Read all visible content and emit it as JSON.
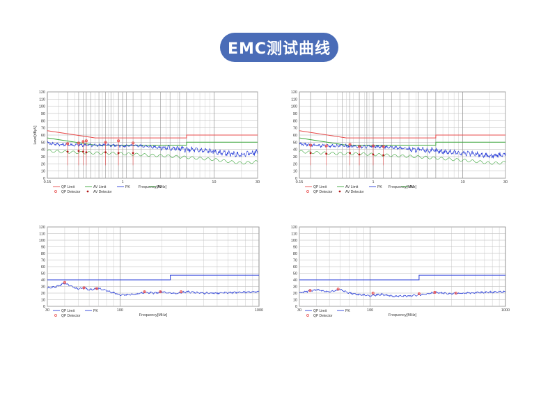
{
  "page_title": "EMC测试曲线",
  "colors": {
    "pill": "#4a6cb7",
    "qp_limit": "#e84a4a",
    "av_limit": "#3aa63a",
    "pk": "#2a3fd8",
    "av": "#3aa63a",
    "grid": "#9a9a9a"
  },
  "chart_data": [
    {
      "type": "line",
      "xlabel": "Frequency[MHz]",
      "ylabel": "Level[dBµV]",
      "x_scale": "log",
      "xlim": [
        0.15,
        30
      ],
      "ylim": [
        0,
        120
      ],
      "x_ticks": [
        {
          "v": 0.15,
          "label": "0.15"
        },
        {
          "v": 1,
          "label": "1"
        },
        {
          "v": 10,
          "label": "10"
        },
        {
          "v": 30,
          "label": "30"
        }
      ],
      "y_ticks": [
        0,
        10,
        20,
        30,
        40,
        50,
        60,
        70,
        80,
        90,
        100,
        110,
        120
      ],
      "series": [
        {
          "name": "QP Limit",
          "style": "step",
          "points": [
            [
              0.15,
              66
            ],
            [
              0.5,
              56
            ],
            [
              5,
              56
            ],
            [
              5,
              60
            ],
            [
              30,
              60
            ]
          ]
        },
        {
          "name": "AV Limit",
          "style": "step",
          "points": [
            [
              0.15,
              56
            ],
            [
              0.5,
              46
            ],
            [
              5,
              46
            ],
            [
              5,
              50
            ],
            [
              30,
              50
            ]
          ]
        },
        {
          "name": "PK",
          "style": "noisy",
          "points": [
            [
              0.15,
              49
            ],
            [
              0.2,
              47
            ],
            [
              0.3,
              46
            ],
            [
              0.5,
              46
            ],
            [
              0.7,
              46
            ],
            [
              1,
              45
            ],
            [
              1.5,
              45
            ],
            [
              2,
              44
            ],
            [
              3,
              42
            ],
            [
              5,
              40
            ],
            [
              8,
              38
            ],
            [
              10,
              37
            ],
            [
              15,
              34
            ],
            [
              20,
              33
            ],
            [
              25,
              35
            ],
            [
              30,
              36
            ]
          ]
        },
        {
          "name": "AV",
          "style": "wavy",
          "points": [
            [
              0.15,
              38
            ],
            [
              0.2,
              37
            ],
            [
              0.3,
              36
            ],
            [
              0.5,
              35
            ],
            [
              0.7,
              35
            ],
            [
              1,
              34
            ],
            [
              1.5,
              33
            ],
            [
              2,
              32
            ],
            [
              3,
              31
            ],
            [
              5,
              29
            ],
            [
              8,
              27
            ],
            [
              10,
              26
            ],
            [
              15,
              23
            ],
            [
              20,
              21
            ],
            [
              25,
              22
            ],
            [
              30,
              23
            ]
          ]
        }
      ],
      "markers": {
        "qp": [
          [
            0.25,
            48
          ],
          [
            0.33,
            49
          ],
          [
            0.37,
            51
          ],
          [
            0.4,
            52
          ],
          [
            0.65,
            50
          ],
          [
            0.9,
            52
          ],
          [
            1.3,
            49
          ]
        ],
        "av": [
          [
            0.25,
            37
          ],
          [
            0.33,
            38
          ],
          [
            0.37,
            37
          ],
          [
            0.4,
            36
          ],
          [
            0.65,
            36
          ],
          [
            0.9,
            35
          ],
          [
            1.3,
            35
          ]
        ]
      },
      "vlines": [
        0.25,
        0.33,
        0.37,
        0.4,
        0.45,
        0.55,
        0.65,
        0.75,
        0.9,
        1.1,
        1.3,
        1.6,
        2.0,
        2.6,
        3.3,
        4.2,
        5.0
      ],
      "legend": [
        {
          "label": "QP Limit",
          "kind": "line",
          "color": "#e84a4a"
        },
        {
          "label": "AV Limit",
          "kind": "line",
          "color": "#3aa63a"
        },
        {
          "label": "PK",
          "kind": "line",
          "color": "#2a3fd8"
        },
        {
          "label": "AV",
          "kind": "line",
          "color": "#3aa63a"
        },
        {
          "label": "QP Detector",
          "kind": "star",
          "color": "#e84a4a"
        },
        {
          "label": "AV Detector",
          "kind": "dot",
          "color": "#b01818"
        }
      ]
    },
    {
      "type": "line",
      "xlabel": "Frequency[MHz]",
      "ylabel": "",
      "x_scale": "log",
      "xlim": [
        0.15,
        30
      ],
      "ylim": [
        0,
        120
      ],
      "x_ticks": [
        {
          "v": 0.15,
          "label": "0.15"
        },
        {
          "v": 1,
          "label": "1"
        },
        {
          "v": 10,
          "label": "10"
        },
        {
          "v": 30,
          "label": "30"
        }
      ],
      "y_ticks": [
        0,
        10,
        20,
        30,
        40,
        50,
        60,
        70,
        80,
        90,
        100,
        110,
        120
      ],
      "series": [
        {
          "name": "QP Limit",
          "style": "step",
          "points": [
            [
              0.15,
              66
            ],
            [
              0.5,
              56
            ],
            [
              5,
              56
            ],
            [
              5,
              60
            ],
            [
              30,
              60
            ]
          ]
        },
        {
          "name": "AV Limit",
          "style": "step",
          "points": [
            [
              0.15,
              56
            ],
            [
              0.5,
              46
            ],
            [
              5,
              46
            ],
            [
              5,
              50
            ],
            [
              30,
              50
            ]
          ]
        },
        {
          "name": "PK",
          "style": "noisy",
          "points": [
            [
              0.15,
              48
            ],
            [
              0.2,
              46
            ],
            [
              0.3,
              45
            ],
            [
              0.5,
              45
            ],
            [
              0.7,
              44
            ],
            [
              1,
              44
            ],
            [
              1.5,
              43
            ],
            [
              2,
              42
            ],
            [
              3,
              40
            ],
            [
              5,
              38
            ],
            [
              8,
              36
            ],
            [
              10,
              35
            ],
            [
              15,
              33
            ],
            [
              20,
              31
            ],
            [
              25,
              32
            ],
            [
              30,
              33
            ]
          ]
        },
        {
          "name": "AV",
          "style": "wavy",
          "points": [
            [
              0.15,
              37
            ],
            [
              0.2,
              36
            ],
            [
              0.3,
              35
            ],
            [
              0.5,
              34
            ],
            [
              0.7,
              34
            ],
            [
              1,
              33
            ],
            [
              1.5,
              32
            ],
            [
              2,
              31
            ],
            [
              3,
              30
            ],
            [
              5,
              28
            ],
            [
              8,
              26
            ],
            [
              10,
              25
            ],
            [
              15,
              23
            ],
            [
              20,
              21
            ],
            [
              25,
              21
            ],
            [
              30,
              22
            ]
          ]
        }
      ],
      "markers": {
        "qp": [
          [
            0.2,
            46
          ],
          [
            0.3,
            45
          ],
          [
            0.55,
            47
          ],
          [
            0.7,
            44
          ],
          [
            1.0,
            45
          ],
          [
            1.3,
            44
          ]
        ],
        "av": [
          [
            0.2,
            35
          ],
          [
            0.3,
            34
          ],
          [
            0.55,
            35
          ],
          [
            0.7,
            33
          ],
          [
            1.0,
            33
          ],
          [
            1.3,
            32
          ]
        ]
      },
      "vlines": [
        0.2,
        0.3,
        0.45,
        0.55,
        0.7,
        0.85,
        1.0,
        1.3,
        1.6,
        2.0,
        2.5,
        3.2,
        4.0,
        5.0
      ],
      "legend": [
        {
          "label": "QP Limit",
          "kind": "line",
          "color": "#e84a4a"
        },
        {
          "label": "AV Limit",
          "kind": "line",
          "color": "#3aa63a"
        },
        {
          "label": "PK",
          "kind": "line",
          "color": "#2a3fd8"
        },
        {
          "label": "AV",
          "kind": "line",
          "color": "#3aa63a"
        },
        {
          "label": "QP Detector",
          "kind": "star",
          "color": "#e84a4a"
        },
        {
          "label": "AV Detector",
          "kind": "dot",
          "color": "#b01818"
        }
      ]
    },
    {
      "type": "line",
      "xlabel": "Frequency[MHz]",
      "ylabel": "",
      "x_scale": "log",
      "xlim": [
        30,
        1000
      ],
      "ylim": [
        0,
        120
      ],
      "x_ticks": [
        {
          "v": 30,
          "label": "30"
        },
        {
          "v": 100,
          "label": "100"
        },
        {
          "v": 1000,
          "label": "1000"
        }
      ],
      "y_ticks": [
        0,
        10,
        20,
        30,
        40,
        50,
        60,
        70,
        80,
        90,
        100,
        110,
        120
      ],
      "series": [
        {
          "name": "QP Limit",
          "style": "step",
          "points": [
            [
              30,
              40
            ],
            [
              230,
              40
            ],
            [
              230,
              47
            ],
            [
              1000,
              47
            ]
          ]
        },
        {
          "name": "PK",
          "style": "noisy",
          "points": [
            [
              30,
              28
            ],
            [
              35,
              30
            ],
            [
              40,
              35
            ],
            [
              45,
              30
            ],
            [
              50,
              26
            ],
            [
              55,
              28
            ],
            [
              60,
              25
            ],
            [
              70,
              27
            ],
            [
              80,
              24
            ],
            [
              100,
              17
            ],
            [
              130,
              18
            ],
            [
              150,
              21
            ],
            [
              180,
              20
            ],
            [
              200,
              22
            ],
            [
              250,
              19
            ],
            [
              300,
              22
            ],
            [
              400,
              20
            ],
            [
              500,
              20
            ],
            [
              700,
              21
            ],
            [
              1000,
              22
            ]
          ]
        }
      ],
      "markers": {
        "qp": [
          [
            40,
            36
          ],
          [
            55,
            28
          ],
          [
            68,
            27
          ],
          [
            150,
            22
          ],
          [
            195,
            22
          ],
          [
            275,
            22
          ]
        ],
        "av": []
      },
      "vlines": [],
      "legend": [
        {
          "label": "QP Limit",
          "kind": "line",
          "color": "#2a3fd8"
        },
        {
          "label": "PK",
          "kind": "line",
          "color": "#2a3fd8"
        },
        {
          "label": "QP Detector",
          "kind": "star",
          "color": "#e84a4a"
        }
      ]
    },
    {
      "type": "line",
      "xlabel": "Frequency[MHz]",
      "ylabel": "",
      "x_scale": "log",
      "xlim": [
        30,
        1000
      ],
      "ylim": [
        0,
        120
      ],
      "x_ticks": [
        {
          "v": 30,
          "label": "30"
        },
        {
          "v": 100,
          "label": "100"
        },
        {
          "v": 1000,
          "label": "1000"
        }
      ],
      "y_ticks": [
        0,
        10,
        20,
        30,
        40,
        50,
        60,
        70,
        80,
        90,
        100,
        110,
        120
      ],
      "series": [
        {
          "name": "QP Limit",
          "style": "step",
          "points": [
            [
              30,
              40
            ],
            [
              230,
              40
            ],
            [
              230,
              47
            ],
            [
              1000,
              47
            ]
          ]
        },
        {
          "name": "PK",
          "style": "noisy",
          "points": [
            [
              30,
              20
            ],
            [
              35,
              23
            ],
            [
              40,
              25
            ],
            [
              50,
              22
            ],
            [
              60,
              25
            ],
            [
              70,
              20
            ],
            [
              80,
              18
            ],
            [
              100,
              16
            ],
            [
              120,
              18
            ],
            [
              150,
              15
            ],
            [
              200,
              16
            ],
            [
              250,
              18
            ],
            [
              300,
              21
            ],
            [
              350,
              20
            ],
            [
              400,
              19
            ],
            [
              500,
              20
            ],
            [
              700,
              21
            ],
            [
              1000,
              22
            ]
          ]
        }
      ],
      "markers": {
        "qp": [
          [
            36,
            24
          ],
          [
            58,
            26
          ],
          [
            105,
            20
          ],
          [
            230,
            19
          ],
          [
            300,
            21
          ],
          [
            430,
            20
          ]
        ],
        "av": []
      },
      "vlines": [],
      "legend": [
        {
          "label": "QP Limit",
          "kind": "line",
          "color": "#2a3fd8"
        },
        {
          "label": "PK",
          "kind": "line",
          "color": "#2a3fd8"
        },
        {
          "label": "QP Detector",
          "kind": "star",
          "color": "#e84a4a"
        }
      ]
    }
  ]
}
